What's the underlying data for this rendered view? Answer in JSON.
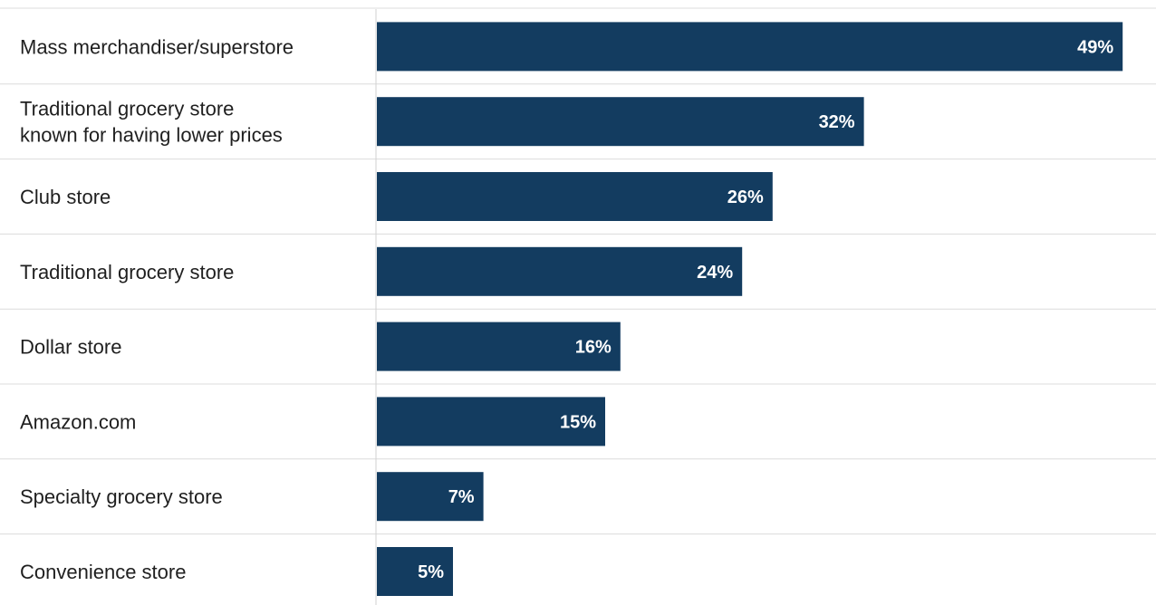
{
  "chart_data": {
    "type": "bar",
    "orientation": "horizontal",
    "categories": [
      "Mass merchandiser/superstore",
      "Traditional grocery store known for having lower prices",
      "Club store",
      "Traditional grocery store",
      "Dollar store",
      "Amazon.com",
      "Specialty grocery store",
      "Convenience store"
    ],
    "category_lines": [
      [
        "Mass merchandiser/superstore"
      ],
      [
        "Traditional grocery store",
        "known for having lower prices"
      ],
      [
        "Club store"
      ],
      [
        "Traditional grocery store"
      ],
      [
        "Dollar store"
      ],
      [
        "Amazon.com"
      ],
      [
        "Specialty grocery store"
      ],
      [
        "Convenience store"
      ]
    ],
    "values": [
      49,
      32,
      26,
      24,
      16,
      15,
      7,
      5
    ],
    "value_labels": [
      "49%",
      "32%",
      "26%",
      "24%",
      "16%",
      "15%",
      "7%",
      "5%"
    ],
    "unit": "%",
    "xlim": [
      0,
      50
    ],
    "grid": false,
    "legend": "none",
    "colors": {
      "bar": "#133c60",
      "value_text": "#ffffff",
      "label_text": "#1f1f1f",
      "separator": "#dcdcdc",
      "axis": "#d0d0d0"
    }
  }
}
